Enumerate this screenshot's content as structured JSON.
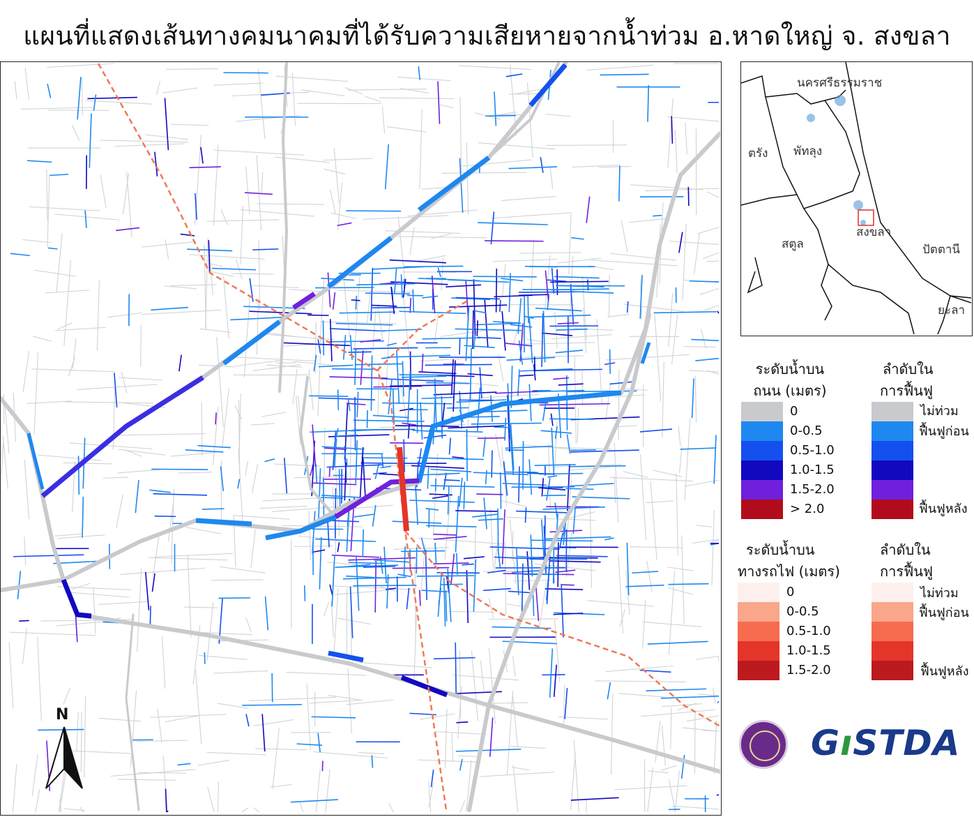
{
  "title": "แผนที่แสดงเส้นทางคมนาคมที่ได้รับความเสียหายจากน้ำท่วม อ.หาดใหญ่ จ. สงขลา",
  "inset": {
    "labels": [
      "นครศรีธรรมราช",
      "พัทลุง",
      "ตรัง",
      "สงขลา",
      "สตูล",
      "ปัตตานี",
      "ยะลา"
    ],
    "highlight_color": "#d9302c"
  },
  "legend_road": {
    "title_line1": "ระดับน้ำบน",
    "title_line2": "ถนน (เมตร)",
    "classes": [
      {
        "label": "0",
        "color": "#c8cacd"
      },
      {
        "label": "0-0.5",
        "color": "#1e88f0"
      },
      {
        "label": "0.5-1.0",
        "color": "#1450ee"
      },
      {
        "label": "1.0-1.5",
        "color": "#1208c0"
      },
      {
        "label": "1.5-2.0",
        "color": "#7020dc"
      },
      {
        "label": "> 2.0",
        "color": "#b20c1c"
      }
    ]
  },
  "legend_road_priority": {
    "title_line1": "ลำดับใน",
    "title_line2": "การฟื้นฟู",
    "labels": {
      "top": "ไม่ท่วม",
      "first": "ฟื้นฟูก่อน",
      "last": "ฟื้นฟูหลัง"
    }
  },
  "legend_rail": {
    "title_line1": "ระดับน้ำบน",
    "title_line2": "ทางรถไฟ (เมตร)",
    "classes": [
      {
        "label": "0",
        "color": "#fdf0ec"
      },
      {
        "label": "0-0.5",
        "color": "#f9a68a"
      },
      {
        "label": "0.5-1.0",
        "color": "#f76c4e"
      },
      {
        "label": "1.0-1.5",
        "color": "#e4352a"
      },
      {
        "label": "1.5-2.0",
        "color": "#bc1a1e"
      }
    ]
  },
  "legend_rail_priority": {
    "title_line1": "ลำดับใน",
    "title_line2": "การฟื้นฟู",
    "labels": {
      "top": "ไม่ท่วม",
      "first": "ฟื้นฟูก่อน",
      "last": "ฟื้นฟูหลัง"
    }
  },
  "north_label": "N",
  "logos": {
    "agency_logo_text": "GISTDA"
  },
  "colors": {
    "road_unflooded": "#c8cacd",
    "railway": "#ee7a55"
  }
}
